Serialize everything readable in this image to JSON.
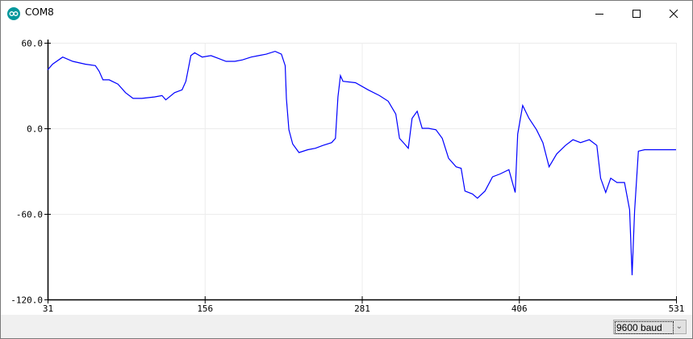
{
  "window": {
    "title": "COM8",
    "icon": "arduino-icon",
    "controls": [
      "minimize",
      "maximize",
      "close"
    ]
  },
  "plot": {
    "line_color": "#0000ff",
    "chart_data": {
      "type": "line",
      "xlim": [
        31,
        531
      ],
      "ylim": [
        -120,
        60
      ],
      "x_ticks": [
        "31",
        "156",
        "281",
        "406",
        "531"
      ],
      "y_ticks": [
        "60.0",
        "0.0",
        "-60.0",
        "-120.0"
      ],
      "grid": true,
      "series": [
        {
          "x": [
            31,
            35,
            43,
            51,
            61,
            69,
            72,
            75,
            80,
            87,
            93,
            99,
            106,
            116,
            122,
            125,
            132,
            138,
            141,
            145,
            148,
            154,
            161,
            167,
            173,
            180,
            186,
            193,
            199,
            205,
            212,
            217,
            220,
            221,
            223,
            226,
            231,
            238,
            244,
            250,
            257,
            260,
            262,
            264,
            266,
            276,
            286,
            295,
            302,
            308,
            311,
            315,
            318,
            321,
            325,
            329,
            334,
            340,
            345,
            350,
            356,
            360,
            363,
            369,
            373,
            379,
            385,
            391,
            398,
            403,
            405,
            409,
            414,
            420,
            425,
            430,
            436,
            443,
            449,
            455,
            462,
            468,
            471,
            475,
            479,
            484,
            490,
            494,
            496,
            498,
            501,
            506,
            518,
            531
          ],
          "y": [
            41,
            45,
            50,
            47,
            45,
            44,
            40,
            34,
            34,
            31,
            25,
            21,
            21,
            22,
            23,
            20,
            25,
            27,
            33,
            51,
            53,
            50,
            51,
            49,
            47,
            47,
            48,
            50,
            51,
            52,
            54,
            52,
            44,
            21,
            -1,
            -11,
            -17,
            -15,
            -14,
            -12,
            -10,
            -7,
            22,
            37,
            33,
            32,
            27,
            23,
            19,
            10,
            -7,
            -11,
            -14,
            7,
            12,
            0,
            0,
            -1,
            -7,
            -21,
            -27,
            -28,
            -44,
            -46,
            -49,
            -44,
            -34,
            -32,
            -29,
            -45,
            -4,
            16,
            7,
            -1,
            -10,
            -27,
            -18,
            -12,
            -8,
            -10,
            -8,
            -12,
            -35,
            -45,
            -35,
            -38,
            -38,
            -57,
            -103,
            -58,
            -16,
            -15,
            -15,
            -15
          ]
        }
      ]
    }
  },
  "footer": {
    "baud_rate": "9600 baud"
  }
}
